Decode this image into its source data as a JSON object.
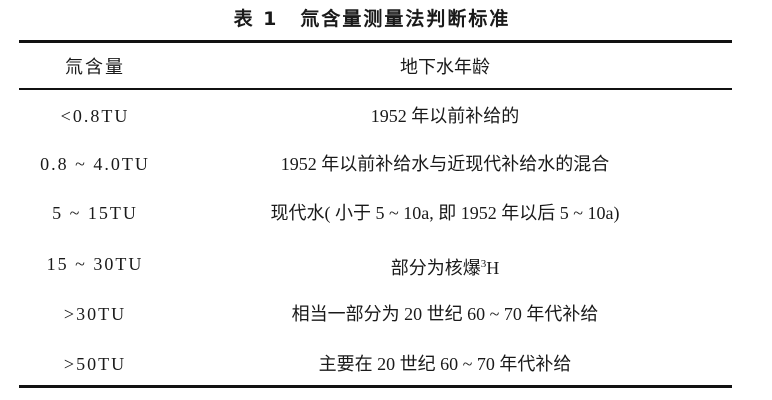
{
  "table": {
    "caption_number": "表 1",
    "caption_text": "氚含量测量法判断标准",
    "headers": [
      "氚含量",
      "地下水年龄"
    ],
    "rows": [
      {
        "tritium": "<0.8TU",
        "age": "1952 年以前补给的"
      },
      {
        "tritium": "0.8 ~ 4.0TU",
        "age": "1952 年以前补给水与近现代补给水的混合"
      },
      {
        "tritium": "5 ~ 15TU",
        "age": "现代水( 小于 5 ~ 10a, 即 1952 年以后 5 ~ 10a)"
      },
      {
        "tritium": "15 ~ 30TU",
        "age": "部分为核爆",
        "age_sup": "3",
        "age_suffix": "H"
      },
      {
        "tritium": ">30TU",
        "age": "相当一部分为 20 世纪 60 ~ 70 年代补给"
      },
      {
        "tritium": ">50TU",
        "age": "主要在 20 世纪 60 ~ 70 年代补给"
      }
    ]
  }
}
